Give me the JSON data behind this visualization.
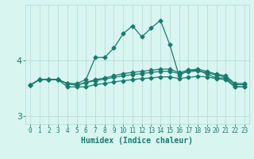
{
  "x": [
    0,
    1,
    2,
    3,
    4,
    5,
    6,
    7,
    8,
    9,
    10,
    11,
    12,
    13,
    14,
    15,
    16,
    17,
    18,
    19,
    20,
    21,
    22,
    23
  ],
  "line1": [
    3.55,
    3.65,
    3.65,
    3.65,
    3.58,
    3.58,
    3.65,
    4.05,
    4.05,
    4.22,
    4.48,
    4.62,
    4.42,
    4.58,
    4.72,
    4.28,
    3.72,
    3.82,
    3.82,
    3.75,
    3.68,
    3.68,
    3.52,
    3.52
  ],
  "line2": [
    3.55,
    3.65,
    3.65,
    3.65,
    3.58,
    3.55,
    3.6,
    3.65,
    3.68,
    3.72,
    3.76,
    3.78,
    3.8,
    3.82,
    3.84,
    3.84,
    3.78,
    3.82,
    3.84,
    3.8,
    3.75,
    3.72,
    3.58,
    3.58
  ],
  "line3": [
    3.55,
    3.65,
    3.65,
    3.65,
    3.58,
    3.55,
    3.6,
    3.63,
    3.66,
    3.69,
    3.72,
    3.74,
    3.76,
    3.78,
    3.8,
    3.8,
    3.76,
    3.79,
    3.81,
    3.78,
    3.73,
    3.7,
    3.56,
    3.56
  ],
  "line4": [
    3.55,
    3.65,
    3.65,
    3.65,
    3.52,
    3.52,
    3.52,
    3.56,
    3.58,
    3.61,
    3.63,
    3.65,
    3.67,
    3.68,
    3.7,
    3.7,
    3.67,
    3.69,
    3.71,
    3.7,
    3.67,
    3.65,
    3.52,
    3.52
  ],
  "color": "#1a7a6e",
  "bg_color": "#d8f5f0",
  "grid_color": "#b8ddd8",
  "xlabel": "Humidex (Indice chaleur)",
  "yticks": [
    3,
    4
  ],
  "ylim": [
    2.85,
    5.0
  ],
  "xlim": [
    -0.5,
    23.5
  ],
  "xlabel_fontsize": 7,
  "marker": "D",
  "markersize": 2.5,
  "linewidth": 0.9
}
